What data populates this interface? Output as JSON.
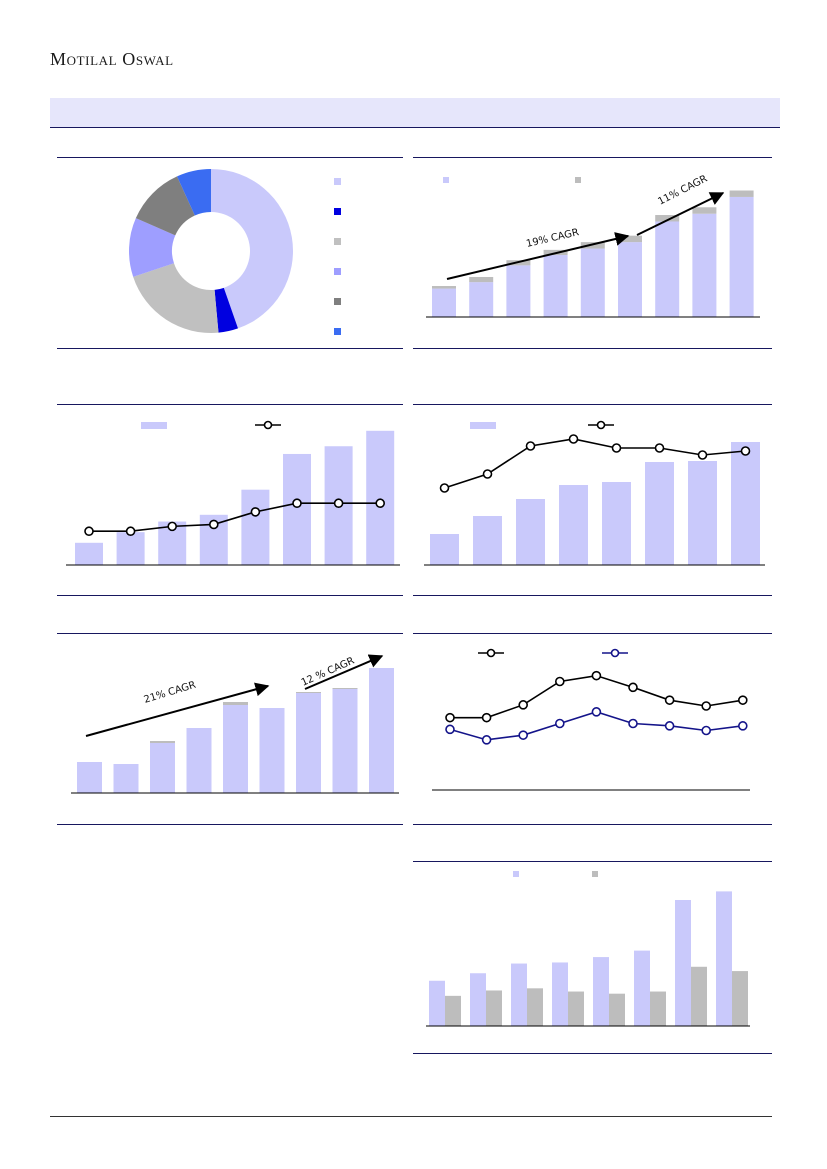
{
  "brand": {
    "name": "Motilal Oswal"
  },
  "colors": {
    "bar_primary": "#c9c9fb",
    "bar_secondary": "#bdbdbd",
    "line_primary": "#000000",
    "line_secondary": "#14148a",
    "accent_rule": "#17175e"
  },
  "chart_data": [
    {
      "id": "pie",
      "type": "pie",
      "values": [
        46,
        4,
        22,
        12,
        12,
        7
      ],
      "colors": [
        "#c9c9fb",
        "#0000e0",
        "#c0c0c0",
        "#9e9eff",
        "#7f7f7f",
        "#3a6cf2"
      ]
    },
    {
      "id": "stacked",
      "type": "bar",
      "stacked": true,
      "series": [
        {
          "values": [
            22,
            27,
            40,
            48,
            53,
            58,
            74,
            80,
            93
          ]
        },
        {
          "values": [
            2,
            4,
            4,
            4,
            5,
            5,
            5,
            5,
            5
          ]
        }
      ],
      "ylim": [
        0,
        110
      ],
      "annotations": [
        "19% CAGR",
        "11% CAGR"
      ]
    },
    {
      "id": "bar_line_left",
      "type": "bar",
      "bars": [
        23,
        34,
        45,
        52,
        78,
        115,
        123,
        139
      ],
      "line": [
        35,
        35,
        40,
        42,
        55,
        64,
        64,
        64
      ],
      "ylim": [
        0,
        145
      ]
    },
    {
      "id": "bar_line_right",
      "type": "bar",
      "bars": [
        31,
        49,
        66,
        80,
        83,
        103,
        104,
        123
      ],
      "line": [
        77,
        91,
        119,
        126,
        117,
        117,
        110,
        114
      ],
      "ylim": [
        0,
        140
      ]
    },
    {
      "id": "growth",
      "type": "bar",
      "series": [
        {
          "values": [
            31,
            29,
            50,
            65,
            88,
            85,
            100,
            104,
            125
          ]
        },
        {
          "values": [
            0,
            0,
            2,
            0,
            3,
            0,
            1,
            1,
            0
          ]
        }
      ],
      "ylim": [
        0,
        140
      ],
      "annotations": [
        "21% CAGR",
        "12 % CAGR"
      ]
    },
    {
      "id": "twolines",
      "type": "line",
      "series": [
        {
          "values": [
            62,
            62,
            73,
            93,
            98,
            88,
            77,
            72,
            77
          ]
        },
        {
          "values": [
            52,
            43,
            47,
            57,
            67,
            57,
            55,
            51,
            55
          ]
        }
      ],
      "ylim": [
        0,
        120
      ]
    },
    {
      "id": "grouped",
      "type": "bar",
      "series": [
        {
          "values": [
            42,
            49,
            58,
            59,
            64,
            70,
            117,
            125
          ]
        },
        {
          "values": [
            28,
            33,
            35,
            32,
            30,
            32,
            55,
            51
          ]
        }
      ],
      "ylim": [
        0,
        130
      ]
    }
  ]
}
